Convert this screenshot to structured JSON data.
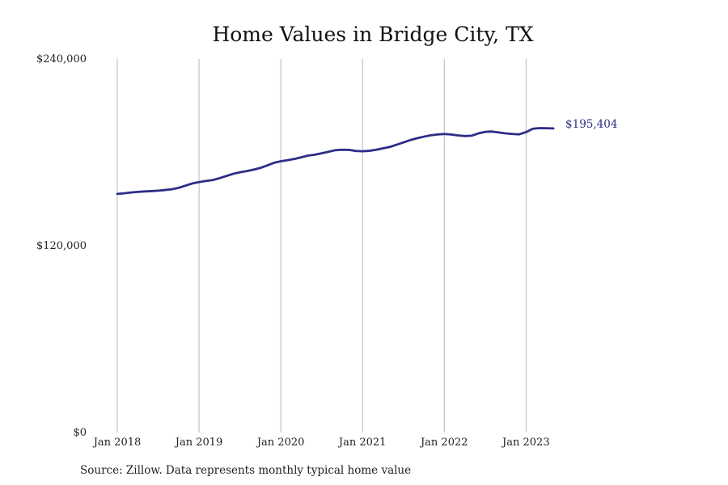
{
  "colors": {
    "series": "#2e2d88",
    "grid": "#b9b9b9",
    "text": "#222222"
  },
  "chart_data": {
    "type": "line",
    "title": "Home Values in Bridge City, TX",
    "xlabel": "",
    "ylabel": "",
    "ylim": [
      0,
      240000
    ],
    "xlim": [
      "2018-01",
      "2023-12"
    ],
    "y_ticks": [
      {
        "value": 0,
        "label": "$0"
      },
      {
        "value": 120000,
        "label": "$120,000"
      },
      {
        "value": 240000,
        "label": "$240,000"
      }
    ],
    "x_ticks": [
      {
        "value": "2018-01",
        "label": "Jan 2018"
      },
      {
        "value": "2019-01",
        "label": "Jan 2019"
      },
      {
        "value": "2020-01",
        "label": "Jan 2020"
      },
      {
        "value": "2021-01",
        "label": "Jan 2021"
      },
      {
        "value": "2022-01",
        "label": "Jan 2022"
      },
      {
        "value": "2023-01",
        "label": "Jan 2023"
      }
    ],
    "grid": "vertical",
    "legend": "none",
    "end_label": "$195,404",
    "series": [
      {
        "x": [
          "2018-01",
          "2018-02",
          "2018-03",
          "2018-04",
          "2018-05",
          "2018-06",
          "2018-07",
          "2018-08",
          "2018-09",
          "2018-10",
          "2018-11",
          "2018-12",
          "2019-01",
          "2019-02",
          "2019-03",
          "2019-04",
          "2019-05",
          "2019-06",
          "2019-07",
          "2019-08",
          "2019-09",
          "2019-10",
          "2019-11",
          "2019-12",
          "2020-01",
          "2020-02",
          "2020-03",
          "2020-04",
          "2020-05",
          "2020-06",
          "2020-07",
          "2020-08",
          "2020-09",
          "2020-10",
          "2020-11",
          "2020-12",
          "2021-01",
          "2021-02",
          "2021-03",
          "2021-04",
          "2021-05",
          "2021-06",
          "2021-07",
          "2021-08",
          "2021-09",
          "2021-10",
          "2021-11",
          "2021-12",
          "2022-01",
          "2022-02",
          "2022-03",
          "2022-04",
          "2022-05",
          "2022-06",
          "2022-07",
          "2022-08",
          "2022-09",
          "2022-10",
          "2022-11",
          "2022-12",
          "2023-01",
          "2023-02",
          "2023-03",
          "2023-04",
          "2023-05"
        ],
        "values": [
          153300,
          153700,
          154200,
          154600,
          154900,
          155100,
          155400,
          155800,
          156300,
          157200,
          158600,
          160000,
          160900,
          161600,
          162200,
          163400,
          164800,
          166200,
          167200,
          168000,
          168900,
          170000,
          171600,
          173300,
          174300,
          175000,
          175800,
          176800,
          177900,
          178500,
          179400,
          180400,
          181400,
          181700,
          181600,
          180900,
          180700,
          181000,
          181700,
          182600,
          183500,
          184900,
          186400,
          187900,
          189100,
          190100,
          191000,
          191500,
          191800,
          191500,
          190900,
          190500,
          190700,
          192200,
          193200,
          193400,
          192800,
          192200,
          191800,
          191600,
          193000,
          195200,
          195600,
          195500,
          195404
        ]
      }
    ]
  },
  "footer": {
    "source": "Source: Zillow. Data represents monthly typical home value"
  }
}
